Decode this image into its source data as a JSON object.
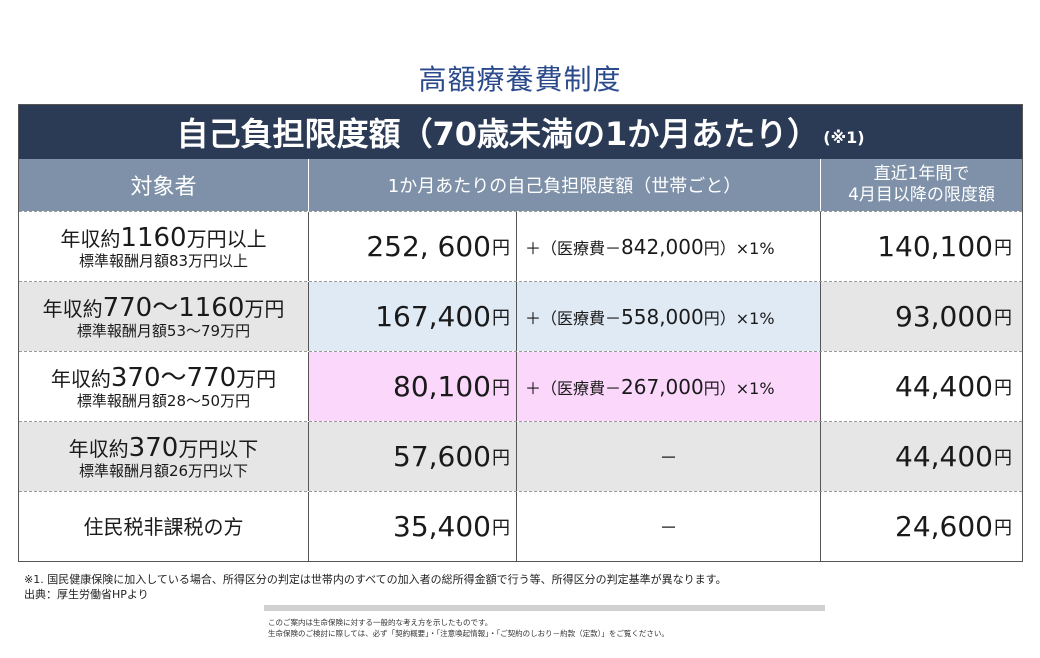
{
  "title": "高額療養費制度",
  "banner": {
    "main": "自己負担限度額（70歳未満の1か月あたり）",
    "note": "(※1)"
  },
  "headers": {
    "target": "対象者",
    "limit": "1か月あたりの自己負担限度額（世帯ごと）",
    "later_line1": "直近1年間で",
    "later_line2": "4月目以降の限度額"
  },
  "rows": [
    {
      "income_prefix": "年収約",
      "income_big": "1160",
      "income_suffix": "万円以上",
      "standard": "標準報酬月額83万円以上",
      "amount": "252, 600",
      "yen": "円",
      "formula_pre": "＋（医療費－",
      "formula_num": "842,000",
      "formula_post": "円）×1%",
      "later": "140,100"
    },
    {
      "income_prefix": "年収約",
      "income_big": "770～1160",
      "income_suffix": "万円",
      "standard": "標準報酬月額53～79万円",
      "amount": "167,400",
      "yen": "円",
      "formula_pre": "＋（医療費－",
      "formula_num": "558,000",
      "formula_post": "円）×1%",
      "later": "93,000"
    },
    {
      "income_prefix": "年収約",
      "income_big": "370～770",
      "income_suffix": "万円",
      "standard": "標準報酬月額28～50万円",
      "amount": "80,100",
      "yen": "円",
      "formula_pre": "＋（医療費－",
      "formula_num": "267,000",
      "formula_post": "円）×1%",
      "later": "44,400"
    },
    {
      "income_prefix": "年収約",
      "income_big": "370",
      "income_suffix": "万円以下",
      "standard": "標準報酬月額26万円以下",
      "amount": "57,600",
      "yen": "円",
      "formula": "－",
      "later": "44,400"
    },
    {
      "income_single": "住民税非課税の方",
      "amount": "35,400",
      "yen": "円",
      "formula": "－",
      "later": "24,600"
    }
  ],
  "footnote": {
    "line1": "※1. 国民健康保険に加入している場合、所得区分の判定は世帯内のすべての加入者の総所得金額で行う等、所得区分の判定基準が異なります。",
    "line2": "出典：厚生労働省HPより"
  },
  "disclaimer": {
    "line1": "このご案内は生命保険に対する一般的な考え方を示したものです。",
    "line2": "生命保険のご検討に際しては、必ず「契約概要」・「注意喚起情報」・「ご契約のしおり－約款（定款）」をご覧ください。"
  },
  "colors": {
    "title": "#2b4a8c",
    "banner_bg": "#2b3a55",
    "header_bg": "#7e91a9",
    "row_gray": "#e6e6e6",
    "row_blue": "#dfeaf5",
    "row_pink": "#fbd7fb"
  }
}
